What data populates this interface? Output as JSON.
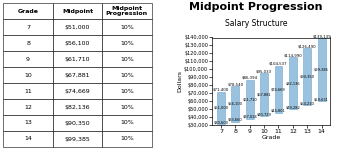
{
  "chart_data": {
    "type": "bar",
    "title": "Midpoint Progression",
    "subtitle": "Salary Structure",
    "xlabel": "Grade",
    "ylabel": "Dollars",
    "categories": [
      "7",
      "8",
      "9",
      "10",
      "11",
      "12",
      "13",
      "14"
    ],
    "values": [
      51000,
      56100,
      61710,
      67881,
      74669,
      82136,
      90350,
      99385
    ],
    "value_labels": [
      "$51,000",
      "$56,100",
      "$61,710",
      "$67,881",
      "$74,669",
      "$82,136",
      "$90,350",
      "$99,385"
    ],
    "lows": [
      30600,
      33660,
      37026,
      40728.6,
      44801.4,
      49281.6,
      54210,
      59631
    ],
    "low_labels": [
      "$30,600",
      "$33,660",
      "$37,026",
      "$40,729",
      "$44,801",
      "$49,282",
      "$54,210",
      "$59,631"
    ],
    "highs": [
      71400,
      78540,
      86394,
      95033.4,
      104536.6,
      114990.4,
      126490,
      139139
    ],
    "high_labels": [
      "$71,400",
      "$78,540",
      "$86,394",
      "$95,033",
      "$104,537",
      "$114,990",
      "$126,490",
      "$139,139"
    ],
    "data_labels": true,
    "grid": false,
    "ylim": [
      30000,
      140000
    ],
    "yticks": [
      {
        "value": 30000,
        "label": "$30,000"
      },
      {
        "value": 40000,
        "label": "$40,000"
      },
      {
        "value": 50000,
        "label": "$50,000"
      },
      {
        "value": 60000,
        "label": "$60,000"
      },
      {
        "value": 70000,
        "label": "$70,000"
      },
      {
        "value": 80000,
        "label": "$80,000"
      },
      {
        "value": 90000,
        "label": "$90,000"
      },
      {
        "value": 100000,
        "label": "$100,000"
      },
      {
        "value": 110000,
        "label": "$110,000"
      },
      {
        "value": 120000,
        "label": "$120,000"
      },
      {
        "value": 130000,
        "label": "$130,000"
      },
      {
        "value": 140000,
        "label": "$140,000"
      }
    ],
    "table": {
      "columns": [
        "Grade",
        "Midpoint",
        "Midpoint\nProgression"
      ],
      "rows": [
        [
          "7",
          "$51,000",
          "10%"
        ],
        [
          "8",
          "$56,100",
          "10%"
        ],
        [
          "9",
          "$61,710",
          "10%"
        ],
        [
          "10",
          "$67,881",
          "10%"
        ],
        [
          "11",
          "$74,669",
          "10%"
        ],
        [
          "12",
          "$82,136",
          "10%"
        ],
        [
          "13",
          "$90,350",
          "10%"
        ],
        [
          "14",
          "$99,385",
          "10%"
        ]
      ]
    }
  }
}
